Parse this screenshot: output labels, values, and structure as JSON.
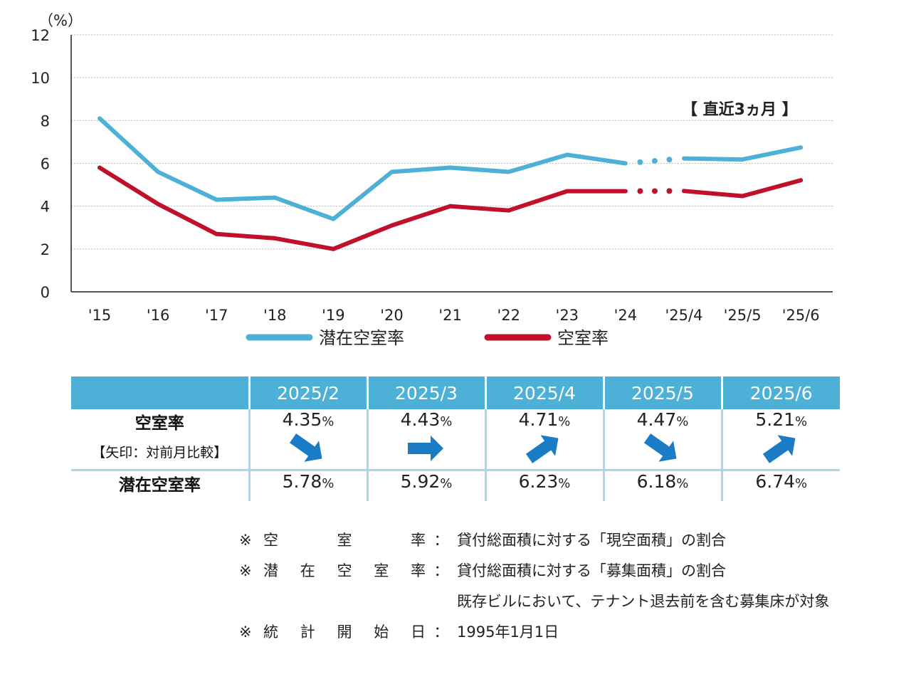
{
  "chart_data": {
    "type": "line",
    "y_unit_label": "（%）",
    "ylim": [
      0,
      12
    ],
    "yticks": [
      0,
      2,
      4,
      6,
      8,
      10,
      12
    ],
    "grid": true,
    "categories": [
      "'15",
      "'16",
      "'17",
      "'18",
      "'19",
      "'20",
      "'21",
      "'22",
      "'23",
      "'24",
      "'25/4",
      "'25/5",
      "'25/6"
    ],
    "series": [
      {
        "name": "潜在空室率",
        "color": "#4db0d6",
        "values": [
          8.1,
          5.6,
          4.3,
          4.4,
          3.4,
          5.6,
          5.8,
          5.6,
          6.4,
          6.0,
          6.23,
          6.18,
          6.74
        ]
      },
      {
        "name": "空室率",
        "color": "#c0102a",
        "values": [
          5.8,
          4.1,
          2.7,
          2.5,
          2.0,
          3.1,
          4.0,
          3.8,
          4.7,
          4.7,
          4.71,
          4.47,
          5.21
        ]
      }
    ],
    "gap_between": [
      "'24",
      "'25/4"
    ],
    "annotation": "【 直近3ヵ月 】",
    "legend_position": "bottom"
  },
  "table": {
    "months": [
      "2025/2",
      "2025/3",
      "2025/4",
      "2025/5",
      "2025/6"
    ],
    "vacancy_label": "空室率",
    "vacancy_sub": "【矢印：対前月比較】",
    "vacancy_values": [
      "4.35",
      "4.43",
      "4.71",
      "4.47",
      "5.21"
    ],
    "arrows": [
      "down",
      "flat",
      "up",
      "down",
      "up"
    ],
    "potential_label": "潜在空室率",
    "potential_values": [
      "5.78",
      "5.92",
      "6.23",
      "6.18",
      "6.74"
    ],
    "percent_sign": "%",
    "header_color": "#4db0d6",
    "arrow_color": "#1a7cc4"
  },
  "notes": [
    {
      "mark": "※",
      "label": [
        "空",
        "室",
        "率"
      ],
      "colon": "：",
      "text": "貸付総面積に対する「現空面積」の割合"
    },
    {
      "mark": "※",
      "label": [
        "潜",
        "在",
        "空",
        "室",
        "率"
      ],
      "colon": "：",
      "text": "貸付総面積に対する「募集面積」の割合"
    },
    {
      "mark": "",
      "label": [],
      "colon": "",
      "text": "既存ビルにおいて、テナント退去前を含む募集床が対象"
    },
    {
      "mark": "※",
      "label": [
        "統",
        "計",
        "開",
        "始",
        "日"
      ],
      "colon": "：",
      "text": "1995年1月1日"
    }
  ]
}
